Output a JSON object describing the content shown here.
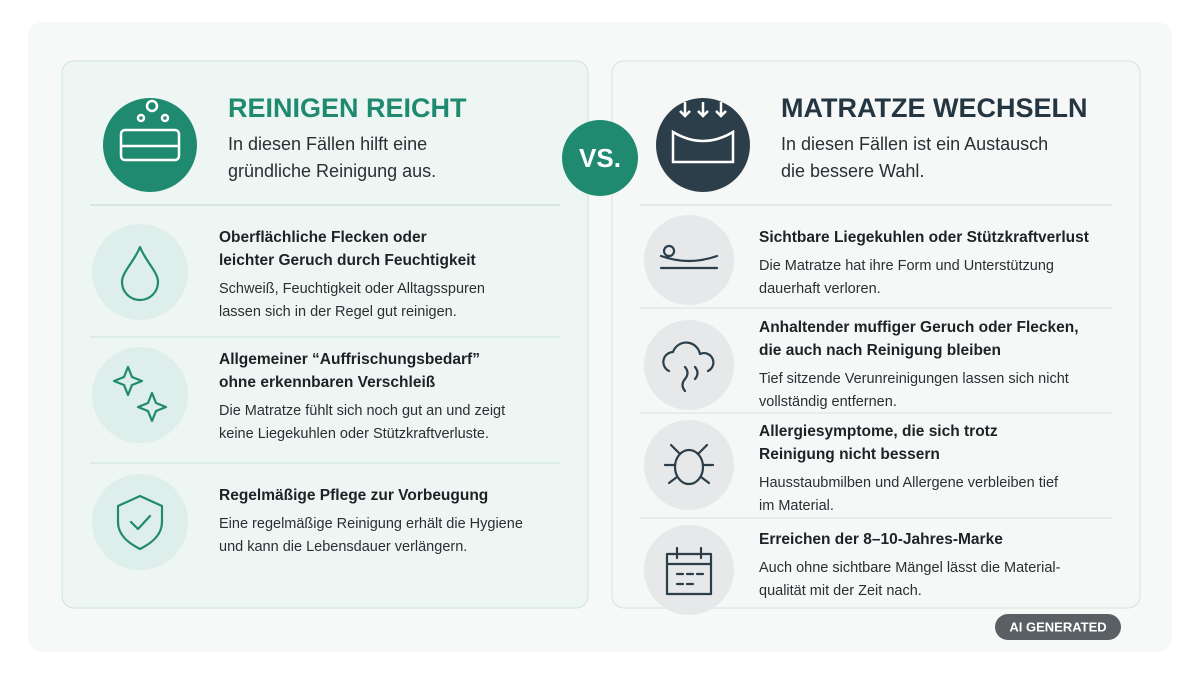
{
  "left": {
    "title": "REINIGEN REICHT",
    "subtitle_lines": [
      "In diesen Fällen hilft eine",
      "gründliche Reinigung aus."
    ],
    "items": [
      {
        "title_lines": [
          "Oberflächliche Flecken oder",
          "leichter Geruch durch Feuchtigkeit"
        ],
        "body_lines": [
          "Schweiß, Feuchtigkeit oder Alltagsspuren",
          "lassen sich in der Regel gut reinigen."
        ]
      },
      {
        "title_lines": [
          "Allgemeiner “Auffrischungsbedarf”",
          "ohne erkennbaren Verschleiß"
        ],
        "body_lines": [
          "Die Matratze fühlt sich noch gut an und zeigt",
          "keine Liegekuhlen oder Stützkraftverluste."
        ]
      },
      {
        "title_lines": [
          "Regelmäßige Pflege zur Vorbeugung"
        ],
        "body_lines": [
          "Eine regelmäßige Reinigung erhält die Hygiene",
          "und kann die Lebensdauer verlängern."
        ]
      }
    ]
  },
  "vs": "VS.",
  "right": {
    "title": "MATRATZE WECHSELN",
    "subtitle_lines": [
      "In diesen Fällen ist ein Austausch",
      "die bessere Wahl."
    ],
    "items": [
      {
        "title_lines": [
          "Sichtbare Liegekuhlen oder Stützkraftverlust"
        ],
        "body_lines": [
          "Die Matratze hat ihre Form und Unterstützung",
          "dauerhaft verloren."
        ]
      },
      {
        "title_lines": [
          "Anhaltender muffiger Geruch oder Flecken,",
          "die auch nach Reinigung bleiben"
        ],
        "body_lines": [
          "Tief sitzende Verunreinigungen lassen sich nicht",
          "vollständig entfernen."
        ]
      },
      {
        "title_lines": [
          "Allergiesymptome, die sich trotz",
          "Reinigung nicht bessern"
        ],
        "body_lines": [
          "Hausstaubmilben und Allergene verbleiben tief",
          "im Material."
        ]
      },
      {
        "title_lines": [
          "Erreichen der 8–10-Jahres-Marke"
        ],
        "body_lines": [
          "Auch ohne sichtbare Mängel lässt die Material-",
          "qualität mit der Zeit nach."
        ]
      }
    ]
  },
  "badge": "AI GENERATED"
}
